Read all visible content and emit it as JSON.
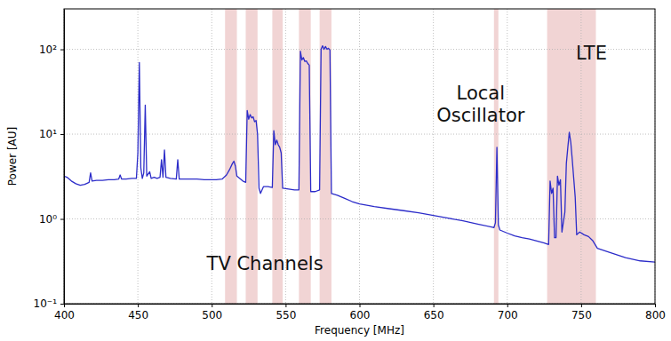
{
  "chart_data": {
    "type": "line",
    "x_label": "Frequency [MHz]",
    "y_label": "Power [AU]",
    "xlim": [
      400,
      800
    ],
    "xticks": [
      400,
      450,
      500,
      550,
      600,
      650,
      700,
      750,
      800
    ],
    "ylim": [
      0.1,
      300
    ],
    "yticks": [
      {
        "value": 0.1,
        "label": "10⁻¹"
      },
      {
        "value": 1,
        "label": "10⁰"
      },
      {
        "value": 10,
        "label": "10¹"
      },
      {
        "value": 100,
        "label": "10²"
      }
    ],
    "log": "y",
    "grid": true,
    "x": [
      400,
      402,
      405,
      408,
      411,
      414,
      417,
      418,
      419,
      422,
      426,
      430,
      434,
      437,
      438,
      439,
      442,
      446,
      449,
      450,
      451,
      452,
      453,
      454,
      455,
      456,
      458,
      459,
      461,
      463,
      465,
      466,
      467,
      468,
      469,
      472,
      476,
      477,
      478,
      483,
      490,
      495,
      499,
      503,
      507,
      510,
      512,
      514,
      515,
      516,
      517,
      519,
      521,
      523,
      524,
      525,
      526,
      527,
      528,
      529,
      530,
      531,
      532,
      533,
      535,
      538,
      541,
      542,
      543,
      544,
      545,
      546,
      547,
      548,
      552,
      556,
      559,
      560,
      561,
      562,
      563,
      564,
      565,
      566,
      567,
      570,
      573,
      574,
      575,
      576,
      577,
      578,
      579,
      580,
      581,
      585,
      590,
      595,
      600,
      605,
      610,
      620,
      630,
      640,
      650,
      660,
      670,
      680,
      690,
      691,
      692,
      693,
      694,
      695,
      700,
      705,
      710,
      715,
      720,
      725,
      728,
      729,
      730,
      731,
      732,
      733,
      734,
      735,
      736,
      737,
      739,
      740,
      741,
      742,
      743,
      744,
      745,
      746,
      747,
      749,
      752,
      755,
      758,
      761,
      770,
      780,
      790,
      800
    ],
    "series": [
      {
        "color": "#2c2cc9",
        "values": [
          3.2,
          3.1,
          2.8,
          2.6,
          2.5,
          2.55,
          2.7,
          3.5,
          2.8,
          2.85,
          2.85,
          2.9,
          2.9,
          2.95,
          3.3,
          2.95,
          2.95,
          3.0,
          3.0,
          6,
          70,
          4,
          3.0,
          3.5,
          22,
          3.2,
          3.6,
          3.0,
          3.1,
          3.0,
          3.1,
          5,
          3.1,
          6.5,
          3.1,
          3.0,
          2.95,
          5,
          2.95,
          2.95,
          2.95,
          2.9,
          2.9,
          2.9,
          2.95,
          3.3,
          3.8,
          4.5,
          4.8,
          4.2,
          3.2,
          3.0,
          2.8,
          2.7,
          19,
          15,
          17,
          15.5,
          16,
          14,
          14.5,
          10,
          2.3,
          2.0,
          2.4,
          2.4,
          2.35,
          11,
          7.5,
          8.5,
          7.5,
          7,
          6,
          2.3,
          2.25,
          2.2,
          2.2,
          95,
          75,
          80,
          72,
          73,
          68,
          65,
          2.1,
          2.1,
          2.2,
          100,
          110,
          100,
          108,
          100,
          103,
          98,
          2.0,
          1.9,
          1.75,
          1.6,
          1.5,
          1.45,
          1.4,
          1.32,
          1.25,
          1.18,
          1.1,
          1.02,
          0.95,
          0.87,
          0.8,
          0.79,
          0.9,
          7,
          0.85,
          0.74,
          0.68,
          0.63,
          0.6,
          0.58,
          0.55,
          0.52,
          0.5,
          2.8,
          2.0,
          2.3,
          0.6,
          0.6,
          3.2,
          2.5,
          2.9,
          0.7,
          1.2,
          4.5,
          7,
          10.5,
          8,
          5,
          3,
          1.8,
          0.65,
          0.7,
          0.65,
          0.62,
          0.55,
          0.45,
          0.4,
          0.35,
          0.32,
          0.31
        ]
      }
    ],
    "highlights": [
      {
        "x0": 509,
        "x1": 517
      },
      {
        "x0": 523,
        "x1": 531
      },
      {
        "x0": 541,
        "x1": 548
      },
      {
        "x0": 559,
        "x1": 567
      },
      {
        "x0": 573,
        "x1": 581
      },
      {
        "x0": 691,
        "x1": 694
      },
      {
        "x0": 727,
        "x1": 760
      }
    ],
    "annotations": [
      {
        "text": "TV Channels",
        "x": 536,
        "y": 0.29
      },
      {
        "text": "Local\nOscillator",
        "x": 682,
        "y": 21.7
      },
      {
        "text": "LTE",
        "x": 757,
        "y": 88
      }
    ]
  }
}
